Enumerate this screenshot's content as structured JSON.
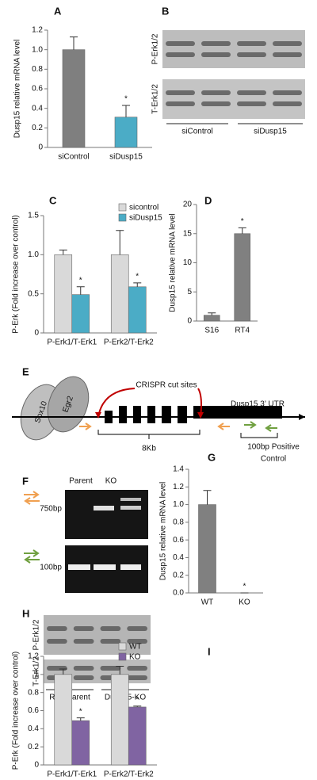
{
  "panel_labels": [
    "A",
    "B",
    "C",
    "D",
    "E",
    "F",
    "G",
    "H",
    "I"
  ],
  "chart_data": [
    {
      "type": "bar",
      "y_label": "Dusp15 relative mRNA level",
      "categories": [
        "siControl",
        "siDusp15"
      ],
      "series": [
        {
          "values": [
            1.0,
            0.31
          ],
          "errors": [
            0.13,
            0.12
          ],
          "colors": [
            "#7f7f7f",
            "#4bacc6"
          ],
          "significance": [
            null,
            "*"
          ]
        }
      ],
      "ylim": [
        0,
        1.2
      ],
      "yticks": [
        0,
        0.2,
        0.4,
        0.6,
        0.8,
        {
          "value": 1,
          "label": "1.0"
        },
        1.2
      ]
    },
    {
      "type": "bar",
      "y_label": "P-Erk (Fold increase over control)",
      "categories": [
        "P-Erk1/T-Erk1",
        "P-Erk2/T-Erk2"
      ],
      "series": [
        {
          "name": "sicontrol",
          "color": "#d9d9d9",
          "values": [
            1.0,
            1.0
          ],
          "errors": [
            0.06,
            0.31
          ],
          "significance": [
            null,
            null
          ]
        },
        {
          "name": "siDusp15",
          "color": "#4bacc6",
          "values": [
            0.49,
            0.59
          ],
          "errors": [
            0.1,
            0.05
          ],
          "significance": [
            "*",
            "*"
          ]
        }
      ],
      "ylim": [
        0,
        1.5
      ],
      "yticks": [
        0,
        0.5,
        {
          "value": 1,
          "label": "1.0"
        },
        1.5
      ],
      "legend": "top-right"
    },
    {
      "type": "bar",
      "y_label": "Dusp15 relative mRNA level",
      "categories": [
        "S16",
        "RT4"
      ],
      "series": [
        {
          "values": [
            1.0,
            15
          ],
          "errors": [
            0.4,
            1.0
          ],
          "colors": [
            "#808080",
            "#808080"
          ],
          "significance": [
            null,
            "*"
          ]
        }
      ],
      "ylim": [
        0,
        20
      ],
      "yticks": [
        0,
        5,
        10,
        15,
        20
      ]
    },
    {
      "type": "bar",
      "y_label": "Dusp15 relative mRNA level",
      "categories": [
        "WT",
        "KO"
      ],
      "series": [
        {
          "values": [
            1.0,
            0
          ],
          "errors": [
            0.16,
            0
          ],
          "colors": [
            "#808080",
            "#808080"
          ],
          "significance": [
            null,
            "*"
          ]
        }
      ],
      "ylim": [
        0,
        1.4
      ],
      "yticks": [
        {
          "value": 0,
          "label": "0.0"
        },
        0.2,
        0.4,
        0.6,
        0.8,
        {
          "value": 1,
          "label": "1.0"
        },
        1.2,
        1.4
      ]
    },
    {
      "type": "bar",
      "y_label": "P-Erk (Fold increase over control)",
      "categories": [
        "P-Erk1/T-Erk1",
        "P-Erk2/T-Erk2"
      ],
      "series": [
        {
          "name": "WT",
          "color": "#d9d9d9",
          "values": [
            1.0,
            1.0
          ],
          "errors": [
            0.06,
            0.09
          ],
          "significance": [
            null,
            null
          ]
        },
        {
          "name": "KO",
          "color": "#8064a2",
          "values": [
            0.49,
            0.64
          ],
          "errors": [
            0.03,
            0.01
          ],
          "significance": [
            "*",
            "*"
          ]
        }
      ],
      "ylim": [
        0,
        1.2
      ],
      "yticks": [
        0,
        0.2,
        0.4,
        0.6,
        0.8,
        1,
        1.2
      ],
      "legend": "top-right"
    }
  ],
  "blots_B": {
    "rows": [
      "P-Erk1/2",
      "T-Erk1/2"
    ],
    "groups": [
      "siControl",
      "siDusp15"
    ]
  },
  "diagram_E": {
    "factors": [
      "Sox10",
      "Egr2"
    ],
    "cut_sites": "CRISPR cut sites",
    "utr": "Dusp15 3’ UTR",
    "span": "8Kb",
    "control": [
      "100bp Positive",
      "Control"
    ]
  },
  "gel_F": {
    "lanes": [
      "Parent",
      "KO"
    ],
    "sizes": [
      "750bp",
      "100bp"
    ]
  },
  "blots_H": {
    "rows": [
      "P-Erk1/2",
      "T-Erk1/2"
    ],
    "groups": [
      "RT4-Parent",
      "Dusp15-KO"
    ]
  }
}
